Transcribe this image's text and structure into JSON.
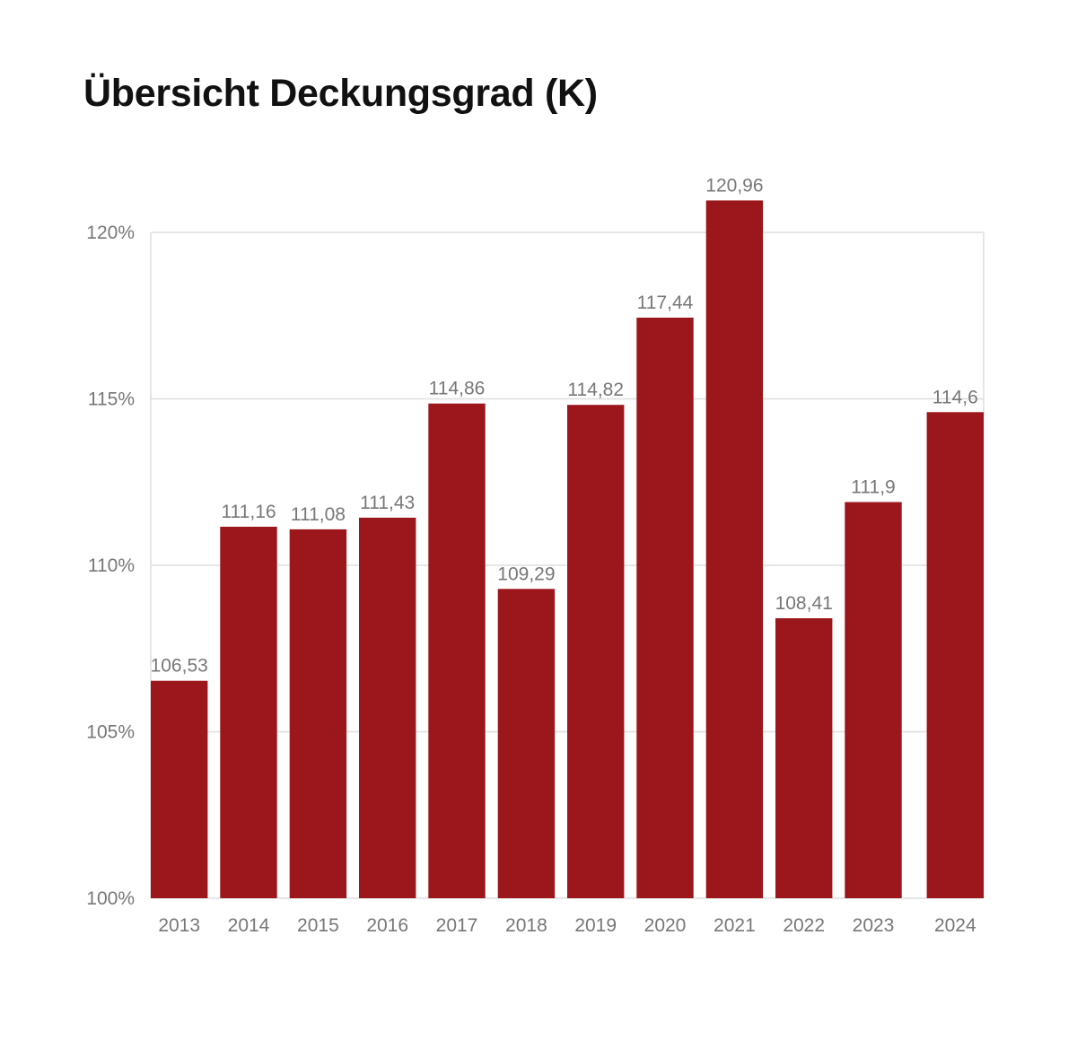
{
  "page_title": "Übersicht Deckungsgrad (K)",
  "chart_data": {
    "type": "bar",
    "title": "Übersicht Deckungsgrad (K)",
    "xlabel": "",
    "ylabel": "",
    "ylim": [
      100,
      120
    ],
    "yticks": [
      100,
      105,
      110,
      115,
      120
    ],
    "ytick_labels": [
      "100%",
      "105%",
      "110%",
      "115%",
      "120%"
    ],
    "categories": [
      "2013",
      "2014",
      "2015",
      "2016",
      "2017",
      "2018",
      "2019",
      "2020",
      "2021",
      "2022",
      "2023",
      "2024"
    ],
    "values": [
      106.53,
      111.16,
      111.08,
      111.43,
      114.86,
      109.29,
      114.82,
      117.44,
      120.96,
      108.41,
      111.9,
      114.6
    ],
    "value_labels": [
      "106,53",
      "111,16",
      "111,08",
      "111,43",
      "114,86",
      "109,29",
      "114,82",
      "117,44",
      "120,96",
      "108,41",
      "111,9",
      "114,6"
    ],
    "bar_color": "#9c171b",
    "grid": true,
    "legend": "none"
  }
}
